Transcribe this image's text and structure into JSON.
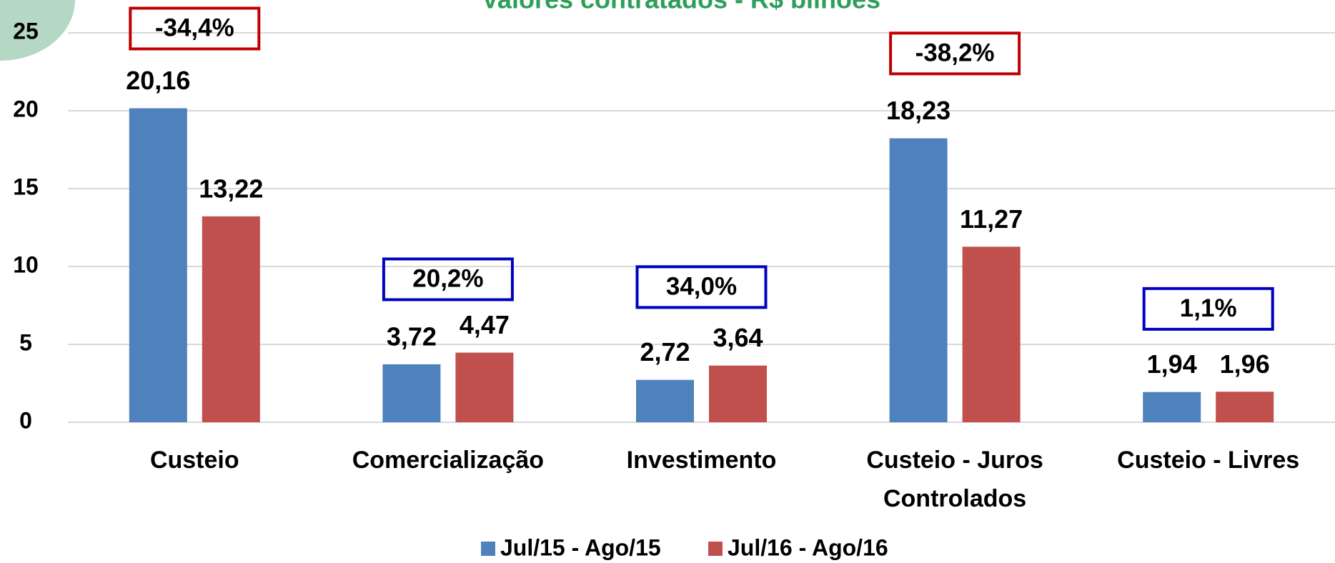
{
  "chart_data": {
    "type": "bar",
    "title": "Valores contratados - R$ bilhões",
    "categories": [
      "Custeio",
      "Comercialização",
      "Investimento",
      "Custeio - Juros Controlados",
      "Custeio - Livres"
    ],
    "series": [
      {
        "name": "Jul/15 - Ago/15",
        "color": "#4f81bd",
        "values": [
          20.16,
          3.72,
          2.72,
          18.23,
          1.94
        ],
        "value_labels": [
          "20,16",
          "3,72",
          "2,72",
          "18,23",
          "1,94"
        ]
      },
      {
        "name": "Jul/16 - Ago/16",
        "color": "#c0504d",
        "values": [
          13.22,
          4.47,
          3.64,
          11.27,
          1.96
        ],
        "value_labels": [
          "13,22",
          "4,47",
          "3,64",
          "11,27",
          "1,96"
        ]
      }
    ],
    "annotations": [
      {
        "text": "-34,4%",
        "color": "#c00000"
      },
      {
        "text": "20,2%",
        "color": "#0000c0"
      },
      {
        "text": "34,0%",
        "color": "#0000c0"
      },
      {
        "text": "-38,2%",
        "color": "#c00000"
      },
      {
        "text": "1,1%",
        "color": "#0000c0"
      }
    ],
    "ylim": [
      0,
      25
    ],
    "yticks": [
      0,
      5,
      10,
      15,
      20,
      25
    ],
    "grid": true,
    "legend": "bottom"
  }
}
